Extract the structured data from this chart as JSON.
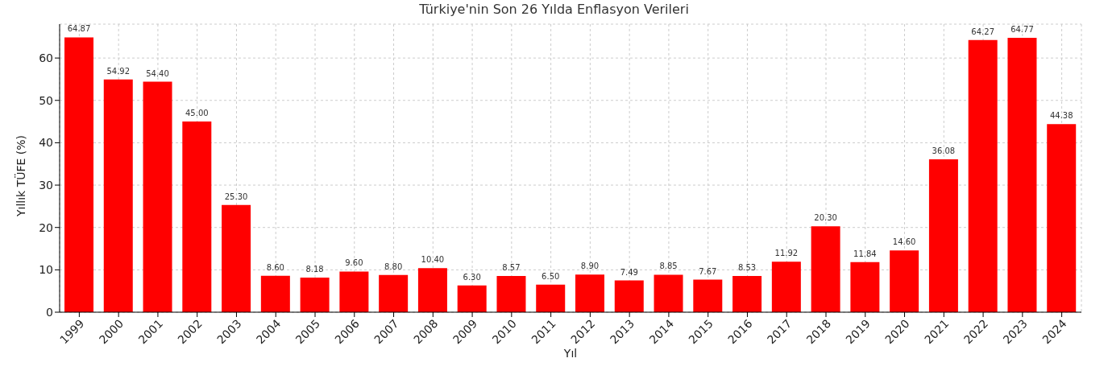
{
  "chart_data": {
    "type": "bar",
    "title": "Türkiye'nin Son 26 Yılda Enflasyon Verileri",
    "xlabel": "Yıl",
    "ylabel": "Yıllık TÜFE (%)",
    "categories": [
      "1999",
      "2000",
      "2001",
      "2002",
      "2003",
      "2004",
      "2005",
      "2006",
      "2007",
      "2008",
      "2009",
      "2010",
      "2011",
      "2012",
      "2013",
      "2014",
      "2015",
      "2016",
      "2017",
      "2018",
      "2019",
      "2020",
      "2021",
      "2022",
      "2023",
      "2024"
    ],
    "values": [
      64.87,
      54.92,
      54.4,
      45.0,
      25.3,
      8.6,
      8.18,
      9.6,
      8.8,
      10.4,
      6.3,
      8.57,
      6.5,
      8.9,
      7.49,
      8.85,
      7.67,
      8.53,
      11.92,
      20.3,
      11.84,
      14.6,
      36.08,
      64.27,
      64.77,
      44.38
    ],
    "value_labels": [
      "64.87",
      "54.92",
      "54.40",
      "45.00",
      "25.30",
      "8.60",
      "8.18",
      "9.60",
      "8.80",
      "10.40",
      "6.30",
      "8.57",
      "6.50",
      "8.90",
      "7.49",
      "8.85",
      "7.67",
      "8.53",
      "11.92",
      "20.30",
      "11.84",
      "14.60",
      "36.08",
      "64.27",
      "64.77",
      "44.38"
    ],
    "color": "#ff0000",
    "ylim": [
      0,
      68
    ],
    "yticks": [
      0,
      10,
      20,
      30,
      40,
      50,
      60
    ],
    "grid": true,
    "legend": false
  }
}
